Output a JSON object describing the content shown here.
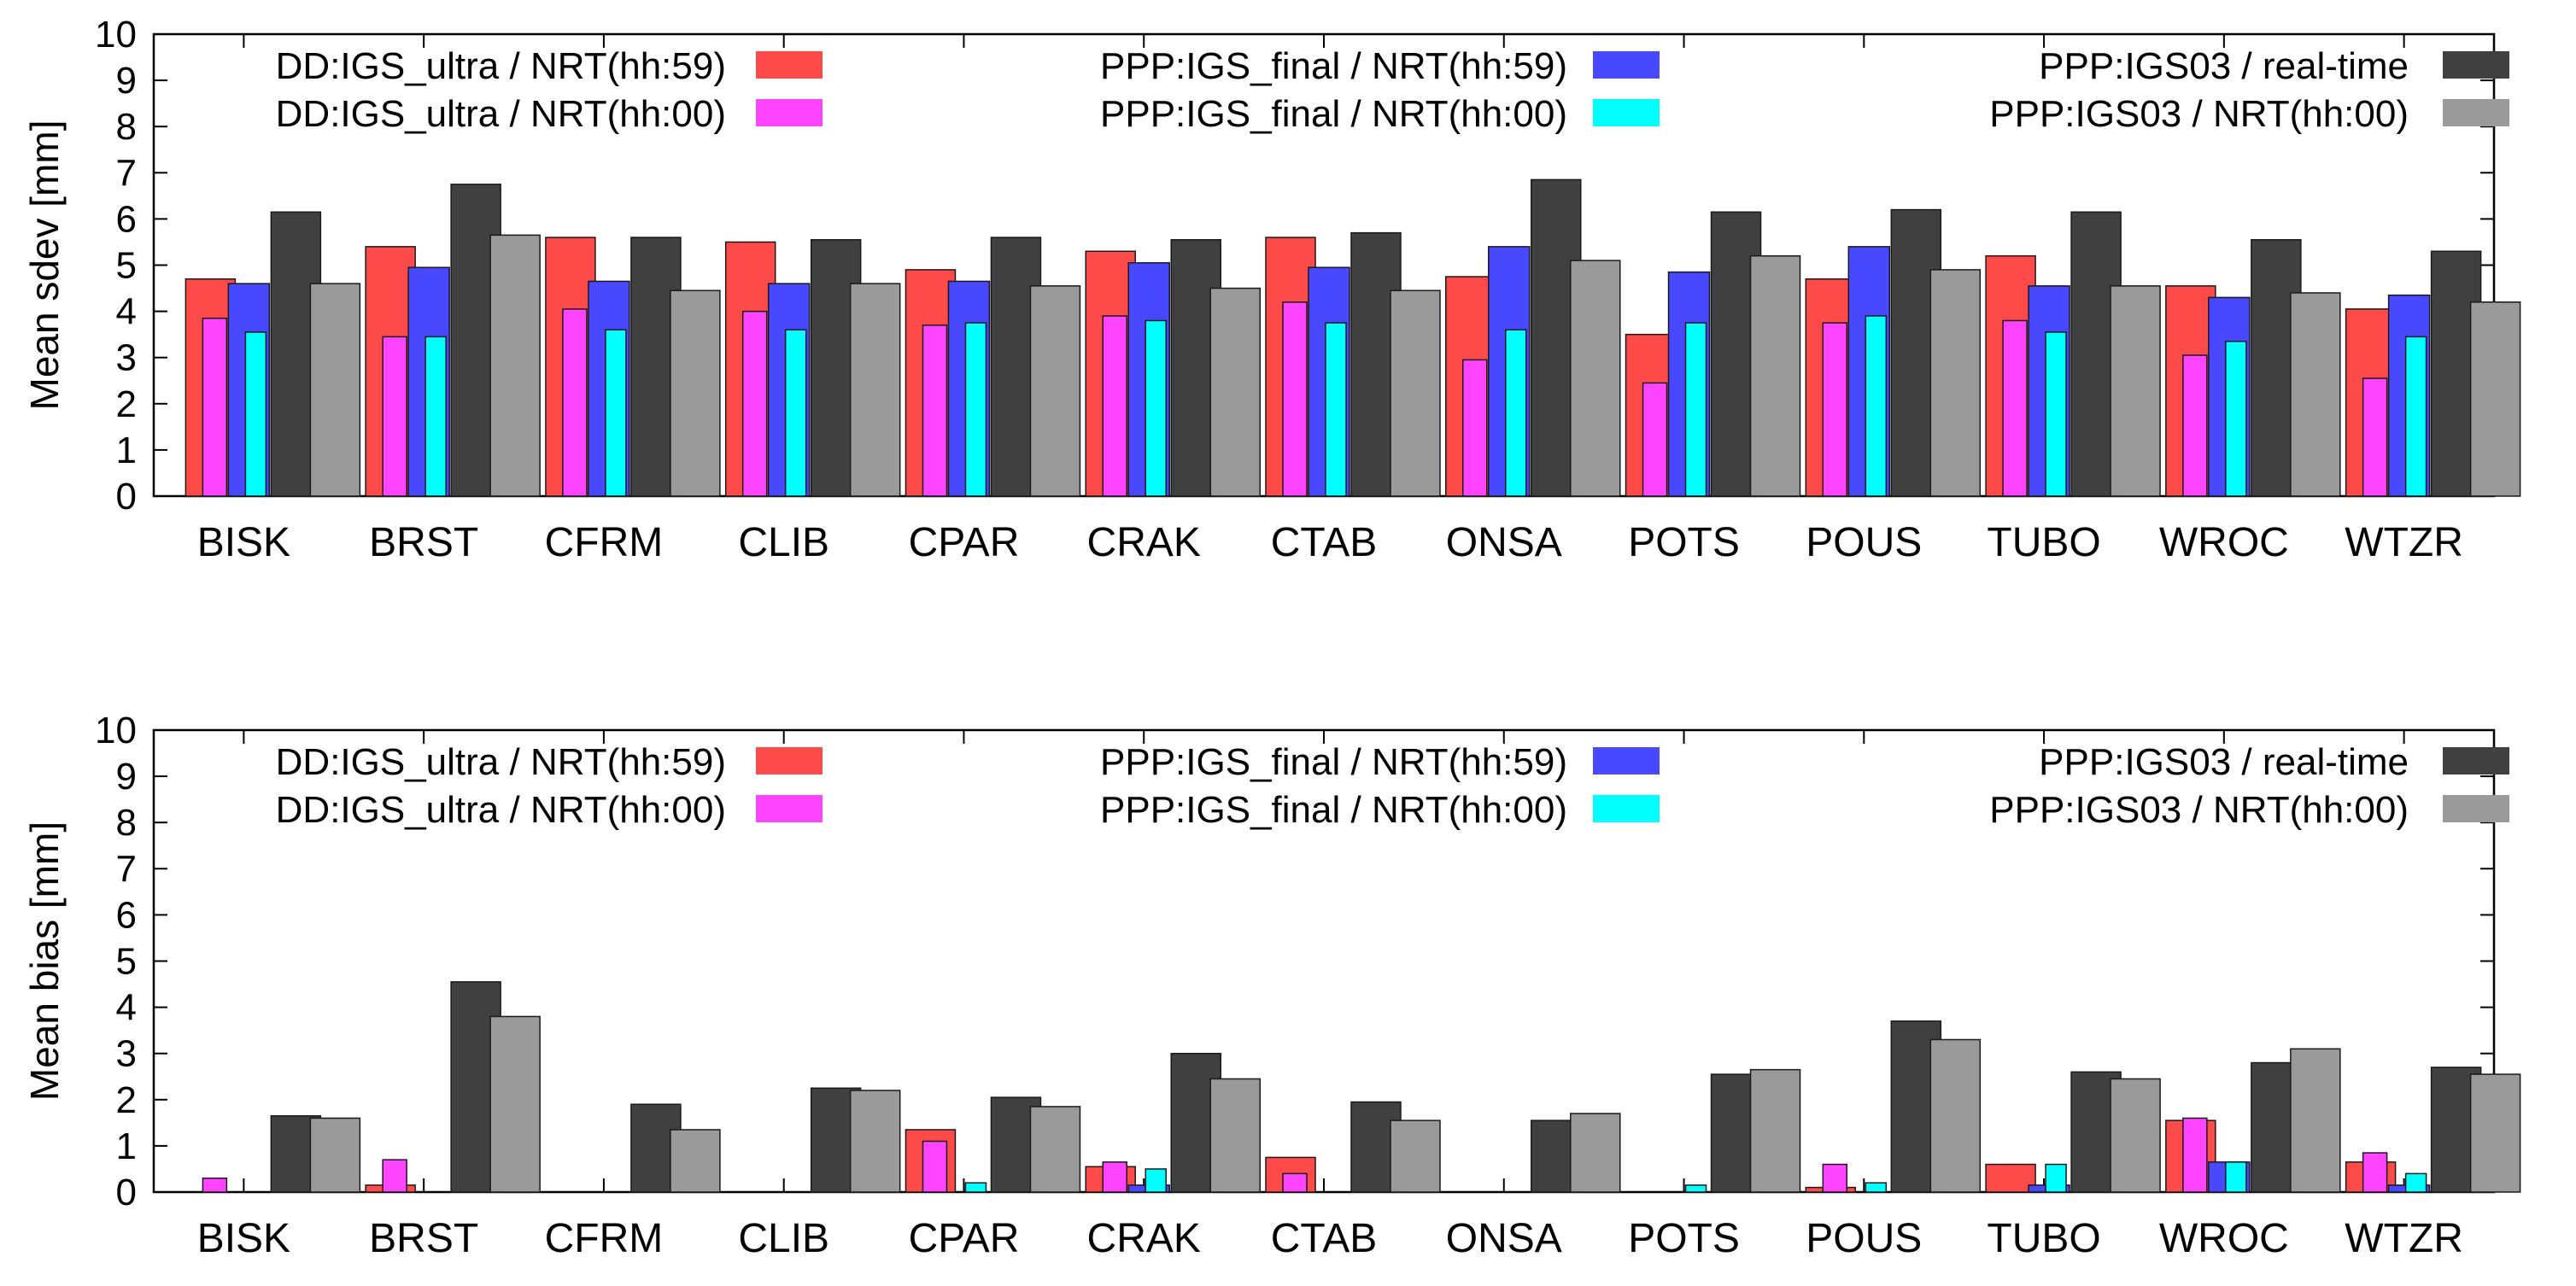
{
  "chart_data": [
    {
      "type": "bar",
      "title": "",
      "xlabel": "",
      "ylabel": "Mean sdev [mm]",
      "ylim": [
        0,
        10
      ],
      "yticks": [
        0,
        1,
        2,
        3,
        4,
        5,
        6,
        7,
        8,
        9,
        10
      ],
      "categories": [
        "BISK",
        "BRST",
        "CFRM",
        "CLIB",
        "CPAR",
        "CRAK",
        "CTAB",
        "ONSA",
        "POTS",
        "POUS",
        "TUBO",
        "WROC",
        "WTZR"
      ],
      "legend_position": "top",
      "series": [
        {
          "name": "DD:IGS_ultra / NRT(hh:59)",
          "color": "#ff4a4a",
          "values": [
            4.7,
            5.4,
            5.6,
            5.5,
            4.9,
            5.3,
            5.6,
            4.75,
            3.5,
            4.7,
            5.2,
            4.55,
            4.05
          ]
        },
        {
          "name": "DD:IGS_ultra / NRT(hh:00)",
          "color": "#ff44ff",
          "values": [
            3.85,
            3.45,
            4.05,
            4.0,
            3.7,
            3.9,
            4.2,
            2.95,
            2.45,
            3.75,
            3.8,
            3.05,
            2.55
          ]
        },
        {
          "name": "PPP:IGS_final / NRT(hh:59)",
          "color": "#4848ff",
          "values": [
            4.6,
            4.95,
            4.65,
            4.6,
            4.65,
            5.05,
            4.95,
            5.4,
            4.85,
            5.4,
            4.55,
            4.3,
            4.35
          ]
        },
        {
          "name": "PPP:IGS_final / NRT(hh:00)",
          "color": "#00ffff",
          "values": [
            3.55,
            3.45,
            3.6,
            3.6,
            3.75,
            3.8,
            3.75,
            3.6,
            3.75,
            3.9,
            3.55,
            3.35,
            3.45
          ]
        },
        {
          "name": "PPP:IGS03 / real-time",
          "color": "#404040",
          "values": [
            6.15,
            6.75,
            5.6,
            5.55,
            5.6,
            5.55,
            5.7,
            6.85,
            6.15,
            6.2,
            6.15,
            5.55,
            5.3
          ]
        },
        {
          "name": "PPP:IGS03 / NRT(hh:00)",
          "color": "#9a9a9a",
          "values": [
            4.6,
            5.65,
            4.45,
            4.6,
            4.55,
            4.5,
            4.45,
            5.1,
            5.2,
            4.9,
            4.55,
            4.4,
            4.2
          ]
        }
      ]
    },
    {
      "type": "bar",
      "title": "",
      "xlabel": "",
      "ylabel": "Mean bias [mm]",
      "ylim": [
        0,
        10
      ],
      "yticks": [
        0,
        1,
        2,
        3,
        4,
        5,
        6,
        7,
        8,
        9,
        10
      ],
      "categories": [
        "BISK",
        "BRST",
        "CFRM",
        "CLIB",
        "CPAR",
        "CRAK",
        "CTAB",
        "ONSA",
        "POTS",
        "POUS",
        "TUBO",
        "WROC",
        "WTZR"
      ],
      "legend_position": "top",
      "series": [
        {
          "name": "DD:IGS_ultra / NRT(hh:59)",
          "color": "#ff4a4a",
          "values": [
            0.0,
            0.15,
            0.0,
            0.0,
            1.35,
            0.55,
            0.75,
            0.0,
            0.0,
            0.1,
            0.6,
            1.55,
            0.65
          ]
        },
        {
          "name": "DD:IGS_ultra / NRT(hh:00)",
          "color": "#ff44ff",
          "values": [
            0.3,
            0.7,
            0.0,
            0.0,
            1.1,
            0.65,
            0.4,
            0.0,
            0.0,
            0.6,
            0.0,
            1.6,
            0.85
          ]
        },
        {
          "name": "PPP:IGS_final / NRT(hh:59)",
          "color": "#4848ff",
          "values": [
            0.0,
            0.0,
            0.0,
            0.0,
            0.0,
            0.15,
            0.0,
            0.0,
            0.0,
            0.0,
            0.15,
            0.65,
            0.15
          ]
        },
        {
          "name": "PPP:IGS_final / NRT(hh:00)",
          "color": "#00ffff",
          "values": [
            0.0,
            0.0,
            0.0,
            0.0,
            0.2,
            0.5,
            0.0,
            0.0,
            0.15,
            0.2,
            0.6,
            0.65,
            0.4
          ]
        },
        {
          "name": "PPP:IGS03 / real-time",
          "color": "#404040",
          "values": [
            1.65,
            4.55,
            1.9,
            2.25,
            2.05,
            3.0,
            1.95,
            1.55,
            2.55,
            3.7,
            2.6,
            2.8,
            2.7
          ]
        },
        {
          "name": "PPP:IGS03 / NRT(hh:00)",
          "color": "#9a9a9a",
          "values": [
            1.6,
            3.8,
            1.35,
            2.2,
            1.85,
            2.45,
            1.55,
            1.7,
            2.65,
            3.3,
            2.45,
            3.1,
            2.55
          ]
        }
      ]
    }
  ]
}
